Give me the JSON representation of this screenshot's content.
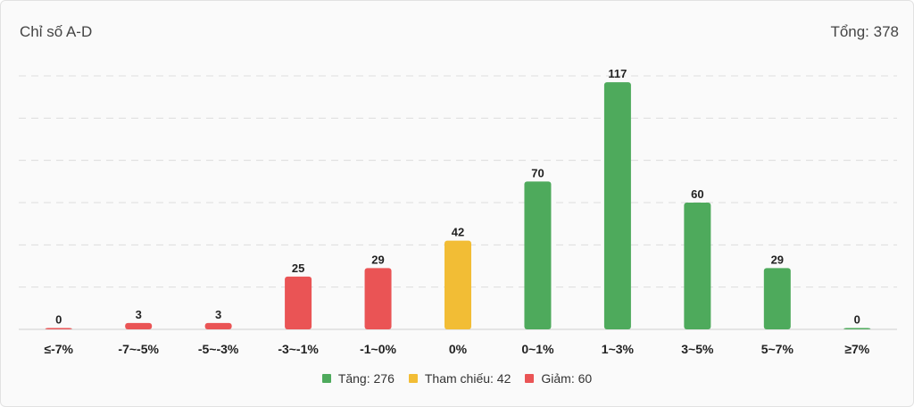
{
  "header": {
    "title": "Chỉ số A-D",
    "total_label": "Tổng: 378"
  },
  "colors": {
    "up": "#4eaa5c",
    "ref": "#f2bd35",
    "down": "#ea5455"
  },
  "legend": [
    {
      "key": "up",
      "label": "Tăng: 276"
    },
    {
      "key": "ref",
      "label": "Tham chiếu: 42"
    },
    {
      "key": "down",
      "label": "Giảm: 60"
    }
  ],
  "chart_data": {
    "type": "bar",
    "categories": [
      "≤-7%",
      "-7~-5%",
      "-5~-3%",
      "-3~-1%",
      "-1~0%",
      "0%",
      "0~1%",
      "1~3%",
      "3~5%",
      "5~7%",
      "≥7%"
    ],
    "values": [
      0,
      3,
      3,
      25,
      29,
      42,
      70,
      117,
      60,
      29,
      0
    ],
    "groups": [
      "down",
      "down",
      "down",
      "down",
      "down",
      "ref",
      "up",
      "up",
      "up",
      "up",
      "up"
    ],
    "ylim": [
      0,
      120
    ],
    "grid": true
  }
}
